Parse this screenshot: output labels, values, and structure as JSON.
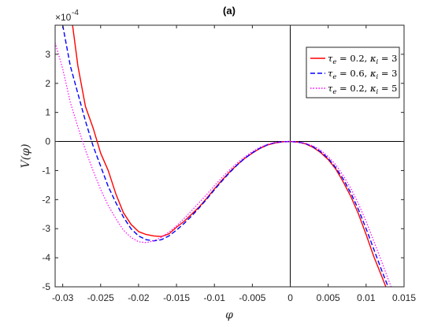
{
  "chart_data": {
    "type": "line",
    "title": "(a)",
    "xlabel": "φ",
    "ylabel": "V(φ)",
    "y_exponent_label": "×10",
    "y_exponent": "-4",
    "xlim": [
      -0.031,
      0.015
    ],
    "ylim": [
      -5,
      4
    ],
    "x_ticks": [
      -0.03,
      -0.025,
      -0.02,
      -0.015,
      -0.01,
      -0.005,
      0,
      0.005,
      0.01,
      0.015
    ],
    "x_tick_labels": [
      "-0.03",
      "-0.025",
      "-0.02",
      "-0.015",
      "-0.01",
      "-0.005",
      "0",
      "0.005",
      "0.01",
      "0.015"
    ],
    "y_ticks": [
      -5,
      -4,
      -3,
      -2,
      -1,
      0,
      1,
      2,
      3
    ],
    "y_tick_labels": [
      "-5",
      "-4",
      "-3",
      "-2",
      "-1",
      "0",
      "1",
      "2",
      "3"
    ],
    "y_units_scale": 0.0001,
    "grid": false,
    "reference_lines": {
      "x": 0,
      "y": 0
    },
    "legend_position": "top-right",
    "series": [
      {
        "name": "τe = 0.2, κi = 3",
        "legend": {
          "tau_sym": "τ",
          "tau_sub": "e",
          "tau_val": " = 0.2, ",
          "kappa_sym": "κ",
          "kappa_sub": "i",
          "kappa_val": " = 3"
        },
        "color": "#ff0000",
        "style": "solid",
        "points": [
          [
            -0.0287,
            4.0
          ],
          [
            -0.028,
            2.6
          ],
          [
            -0.027,
            1.2
          ],
          [
            -0.026,
            0.47
          ],
          [
            -0.025,
            -0.4
          ],
          [
            -0.024,
            -1.0
          ],
          [
            -0.023,
            -1.8
          ],
          [
            -0.022,
            -2.45
          ],
          [
            -0.021,
            -2.85
          ],
          [
            -0.02,
            -3.1
          ],
          [
            -0.019,
            -3.2
          ],
          [
            -0.018,
            -3.25
          ],
          [
            -0.017,
            -3.27
          ],
          [
            -0.016,
            -3.18
          ],
          [
            -0.015,
            -2.95
          ],
          [
            -0.014,
            -2.75
          ],
          [
            -0.013,
            -2.5
          ],
          [
            -0.012,
            -2.25
          ],
          [
            -0.011,
            -1.95
          ],
          [
            -0.01,
            -1.63
          ],
          [
            -0.009,
            -1.33
          ],
          [
            -0.008,
            -1.05
          ],
          [
            -0.007,
            -0.8
          ],
          [
            -0.006,
            -0.58
          ],
          [
            -0.005,
            -0.4
          ],
          [
            -0.004,
            -0.24
          ],
          [
            -0.003,
            -0.12
          ],
          [
            -0.002,
            -0.05
          ],
          [
            -0.001,
            -0.01
          ],
          [
            0,
            0
          ],
          [
            0.001,
            -0.02
          ],
          [
            0.002,
            -0.08
          ],
          [
            0.003,
            -0.2
          ],
          [
            0.004,
            -0.38
          ],
          [
            0.005,
            -0.62
          ],
          [
            0.006,
            -0.95
          ],
          [
            0.007,
            -1.4
          ],
          [
            0.008,
            -1.9
          ],
          [
            0.009,
            -2.5
          ],
          [
            0.01,
            -3.2
          ],
          [
            0.011,
            -3.95
          ],
          [
            0.012,
            -4.6
          ],
          [
            0.0126,
            -5.0
          ]
        ]
      },
      {
        "name": "τe = 0.6, κi = 3",
        "legend": {
          "tau_sym": "τ",
          "tau_sub": "e",
          "tau_val": " = 0.6, ",
          "kappa_sym": "κ",
          "kappa_sub": "i",
          "kappa_val": " = 3"
        },
        "color": "#0000ff",
        "style": "dashed",
        "points": [
          [
            -0.03,
            4.0
          ],
          [
            -0.029,
            2.6
          ],
          [
            -0.028,
            1.65
          ],
          [
            -0.027,
            0.7
          ],
          [
            -0.026,
            -0.15
          ],
          [
            -0.025,
            -0.85
          ],
          [
            -0.024,
            -1.55
          ],
          [
            -0.023,
            -2.1
          ],
          [
            -0.022,
            -2.6
          ],
          [
            -0.021,
            -3.0
          ],
          [
            -0.02,
            -3.25
          ],
          [
            -0.019,
            -3.38
          ],
          [
            -0.018,
            -3.42
          ],
          [
            -0.017,
            -3.38
          ],
          [
            -0.016,
            -3.25
          ],
          [
            -0.015,
            -3.05
          ],
          [
            -0.014,
            -2.82
          ],
          [
            -0.013,
            -2.56
          ],
          [
            -0.012,
            -2.28
          ],
          [
            -0.011,
            -1.98
          ],
          [
            -0.01,
            -1.66
          ],
          [
            -0.009,
            -1.36
          ],
          [
            -0.008,
            -1.07
          ],
          [
            -0.007,
            -0.81
          ],
          [
            -0.006,
            -0.58
          ],
          [
            -0.005,
            -0.39
          ],
          [
            -0.004,
            -0.23
          ],
          [
            -0.003,
            -0.11
          ],
          [
            -0.002,
            -0.04
          ],
          [
            -0.001,
            -0.01
          ],
          [
            0,
            0
          ],
          [
            0.001,
            -0.02
          ],
          [
            0.002,
            -0.07
          ],
          [
            0.003,
            -0.18
          ],
          [
            0.004,
            -0.35
          ],
          [
            0.005,
            -0.58
          ],
          [
            0.006,
            -0.9
          ],
          [
            0.007,
            -1.3
          ],
          [
            0.008,
            -1.78
          ],
          [
            0.009,
            -2.35
          ],
          [
            0.01,
            -3.0
          ],
          [
            0.011,
            -3.7
          ],
          [
            0.012,
            -4.4
          ],
          [
            0.0129,
            -5.0
          ]
        ]
      },
      {
        "name": "τe = 0.2, κi = 5",
        "legend": {
          "tau_sym": "τ",
          "tau_sub": "e",
          "tau_val": " = 0.2, ",
          "kappa_sym": "κ",
          "kappa_sub": "i",
          "kappa_val": " = 5"
        },
        "color": "#ff00ff",
        "style": "dotted",
        "points": [
          [
            -0.031,
            3.4
          ],
          [
            -0.03,
            2.5
          ],
          [
            -0.029,
            1.35
          ],
          [
            -0.028,
            0.5
          ],
          [
            -0.027,
            -0.3
          ],
          [
            -0.026,
            -1.0
          ],
          [
            -0.025,
            -1.65
          ],
          [
            -0.024,
            -2.2
          ],
          [
            -0.023,
            -2.65
          ],
          [
            -0.022,
            -3.05
          ],
          [
            -0.021,
            -3.3
          ],
          [
            -0.02,
            -3.45
          ],
          [
            -0.019,
            -3.48
          ],
          [
            -0.018,
            -3.42
          ],
          [
            -0.017,
            -3.3
          ],
          [
            -0.016,
            -3.12
          ],
          [
            -0.015,
            -2.9
          ],
          [
            -0.014,
            -2.65
          ],
          [
            -0.013,
            -2.38
          ],
          [
            -0.012,
            -2.1
          ],
          [
            -0.011,
            -1.82
          ],
          [
            -0.01,
            -1.52
          ],
          [
            -0.009,
            -1.24
          ],
          [
            -0.008,
            -0.98
          ],
          [
            -0.007,
            -0.74
          ],
          [
            -0.006,
            -0.53
          ],
          [
            -0.005,
            -0.35
          ],
          [
            -0.004,
            -0.2
          ],
          [
            -0.003,
            -0.1
          ],
          [
            -0.002,
            -0.03
          ],
          [
            -0.001,
            -0.005
          ],
          [
            0,
            0
          ],
          [
            0.001,
            -0.015
          ],
          [
            0.002,
            -0.06
          ],
          [
            0.003,
            -0.15
          ],
          [
            0.004,
            -0.3
          ],
          [
            0.005,
            -0.52
          ],
          [
            0.006,
            -0.8
          ],
          [
            0.007,
            -1.18
          ],
          [
            0.008,
            -1.62
          ],
          [
            0.009,
            -2.15
          ],
          [
            0.01,
            -2.75
          ],
          [
            0.011,
            -3.42
          ],
          [
            0.012,
            -4.1
          ],
          [
            0.013,
            -4.8
          ],
          [
            0.0133,
            -5.0
          ]
        ]
      }
    ]
  }
}
